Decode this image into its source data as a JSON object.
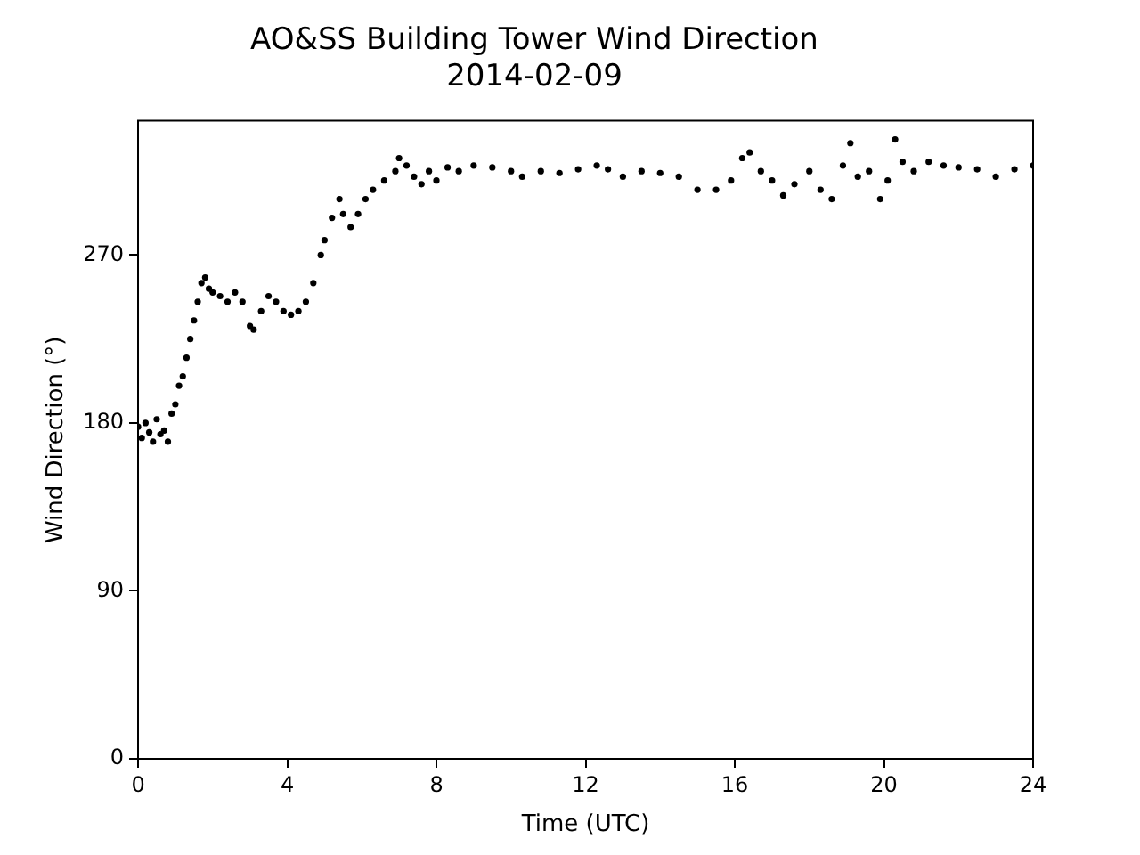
{
  "chart_data": {
    "type": "scatter",
    "title": "AO&SS Building Tower Wind Direction",
    "subtitle": "2014-02-09",
    "xlabel": "Time (UTC)",
    "ylabel": "Wind Direction (°)",
    "xlim": [
      0,
      24
    ],
    "xticks": [
      0,
      4,
      8,
      12,
      16,
      20,
      24
    ],
    "ylim": [
      0,
      342
    ],
    "yticks": [
      0,
      90,
      180,
      270
    ],
    "grid": false,
    "legend": false,
    "marker": "circle",
    "series": [
      {
        "color": "#000000",
        "x": [
          0.0,
          0.1,
          0.2,
          0.3,
          0.4,
          0.5,
          0.6,
          0.7,
          0.8,
          0.9,
          1.0,
          1.1,
          1.2,
          1.3,
          1.4,
          1.5,
          1.6,
          1.7,
          1.8,
          1.9,
          2.0,
          2.2,
          2.4,
          2.6,
          2.8,
          3.0,
          3.1,
          3.3,
          3.5,
          3.7,
          3.9,
          4.1,
          4.3,
          4.5,
          4.7,
          4.9,
          5.0,
          5.2,
          5.4,
          5.5,
          5.7,
          5.9,
          6.1,
          6.3,
          6.6,
          6.9,
          7.0,
          7.2,
          7.4,
          7.6,
          7.8,
          8.0,
          8.3,
          8.6,
          9.0,
          9.5,
          10.0,
          10.3,
          10.8,
          11.3,
          11.8,
          12.3,
          12.6,
          13.0,
          13.5,
          14.0,
          14.5,
          15.0,
          15.5,
          15.9,
          16.2,
          16.4,
          16.7,
          17.0,
          17.3,
          17.6,
          18.0,
          18.3,
          18.6,
          18.9,
          19.1,
          19.3,
          19.6,
          19.9,
          20.1,
          20.3,
          20.5,
          20.8,
          21.2,
          21.6,
          22.0,
          22.5,
          23.0,
          23.5,
          24.0
        ],
        "values": [
          178,
          172,
          180,
          175,
          170,
          182,
          174,
          176,
          170,
          185,
          190,
          200,
          205,
          215,
          225,
          235,
          245,
          255,
          258,
          252,
          250,
          248,
          245,
          250,
          245,
          232,
          230,
          240,
          248,
          245,
          240,
          238,
          240,
          245,
          255,
          270,
          278,
          290,
          300,
          292,
          285,
          292,
          300,
          305,
          310,
          315,
          322,
          318,
          312,
          308,
          315,
          310,
          317,
          315,
          318,
          317,
          315,
          312,
          315,
          314,
          316,
          318,
          316,
          312,
          315,
          314,
          312,
          305,
          305,
          310,
          322,
          325,
          315,
          310,
          302,
          308,
          315,
          305,
          300,
          318,
          330,
          312,
          315,
          300,
          310,
          332,
          320,
          315,
          320,
          318,
          317,
          316,
          312,
          316,
          318
        ]
      }
    ]
  }
}
